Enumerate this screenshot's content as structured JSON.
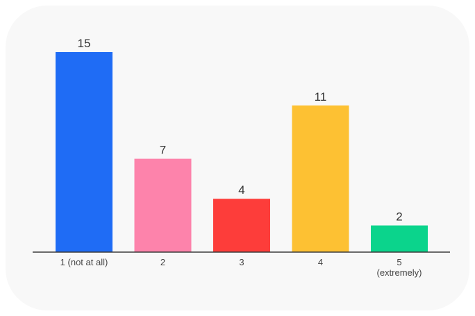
{
  "chart_data": {
    "type": "bar",
    "categories": [
      [
        "1 (not at all)"
      ],
      [
        "2"
      ],
      [
        "3"
      ],
      [
        "4"
      ],
      [
        "5",
        "(extremely)"
      ]
    ],
    "values": [
      15,
      7,
      4,
      11,
      2
    ],
    "colors": [
      "#1f6cf5",
      "#fd83ab",
      "#fd3d3a",
      "#fdc133",
      "#0bd48c"
    ],
    "title": "",
    "xlabel": "",
    "ylabel": "",
    "ylim": [
      0,
      15
    ],
    "grid": false,
    "legend": "none"
  }
}
